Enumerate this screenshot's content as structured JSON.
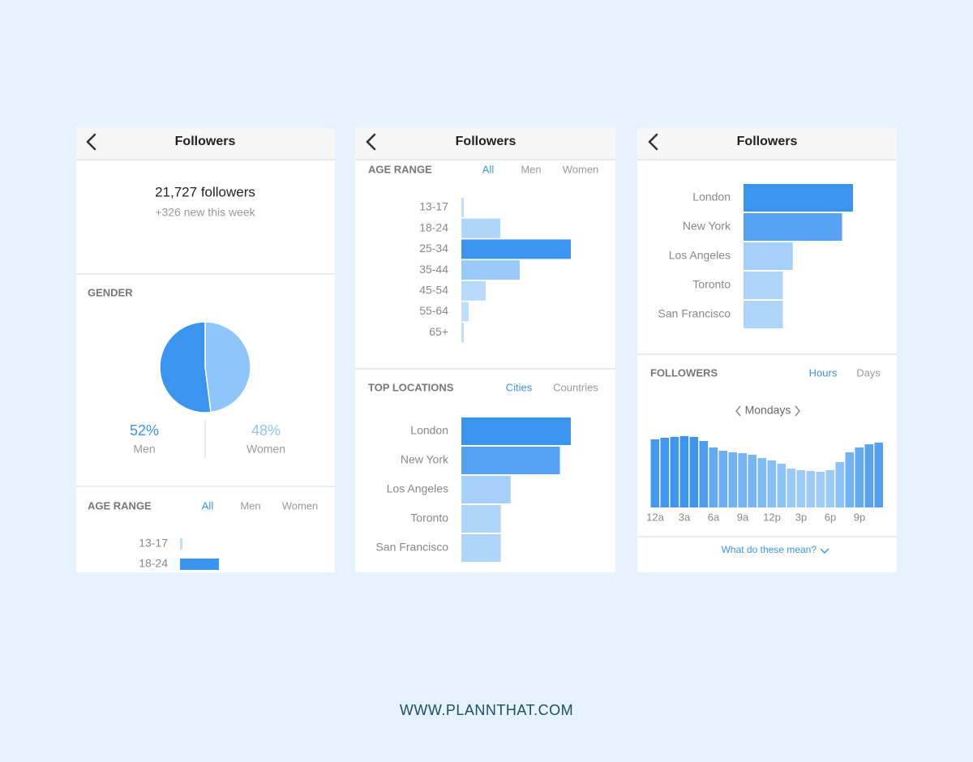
{
  "panels": [
    {
      "header": {
        "title": "Followers"
      },
      "summary": {
        "count": "21,727 followers",
        "change": "+326 new this week"
      },
      "gender": {
        "title": "GENDER",
        "chart_data": {
          "type": "pie",
          "categories": [
            "Men",
            "Women"
          ],
          "values": [
            52,
            48
          ],
          "value_labels": [
            "52%",
            "48%"
          ],
          "colors": [
            "#3b94ee",
            "#8ec5fa"
          ]
        }
      },
      "age_range": {
        "title": "AGE RANGE",
        "tabs": [
          "All",
          "Men",
          "Women"
        ],
        "active_tab": 0,
        "chart_data": {
          "type": "bar",
          "orientation": "horizontal",
          "categories": [
            "13-17",
            "18-24"
          ],
          "values": [
            1,
            16
          ],
          "color_range": [
            "#c0dffc",
            "#3b94ee"
          ]
        }
      }
    },
    {
      "header": {
        "title": "Followers"
      },
      "age_range": {
        "title": "AGE RANGE",
        "tabs": [
          "All",
          "Men",
          "Women"
        ],
        "active_tab": 0,
        "chart_data": {
          "type": "bar",
          "orientation": "horizontal",
          "categories": [
            "13-17",
            "18-24",
            "25-34",
            "35-44",
            "45-54",
            "55-64",
            "65+"
          ],
          "values": [
            1,
            16,
            45,
            24,
            10,
            3,
            1
          ],
          "color_range": [
            "#c0dffc",
            "#3b94ee"
          ]
        }
      },
      "top_locations": {
        "title": "TOP LOCATIONS",
        "tabs": [
          "Cities",
          "Countries"
        ],
        "active_tab": 0,
        "chart_data": {
          "type": "bar",
          "orientation": "horizontal",
          "categories": [
            "London",
            "New York",
            "Los Angeles",
            "Toronto",
            "San Francisco"
          ],
          "values": [
            100,
            90,
            45,
            36,
            36
          ],
          "color_range": [
            "#c0dffc",
            "#3b94ee"
          ]
        }
      }
    },
    {
      "header": {
        "title": "Followers"
      },
      "top_locations": {
        "chart_data": {
          "type": "bar",
          "orientation": "horizontal",
          "categories": [
            "London",
            "New York",
            "Los Angeles",
            "Toronto",
            "San Francisco"
          ],
          "values": [
            100,
            90,
            45,
            36,
            36
          ],
          "color_range": [
            "#c0dffc",
            "#3b94ee"
          ]
        }
      },
      "followers": {
        "title": "FOLLOWERS",
        "tabs": [
          "Hours",
          "Days"
        ],
        "active_tab": 0,
        "day": "Mondays",
        "chart_data": {
          "type": "bar",
          "values": [
            84,
            86,
            87,
            88,
            87,
            82,
            74,
            70,
            68,
            67,
            65,
            61,
            58,
            54,
            48,
            46,
            45,
            44,
            46,
            56,
            68,
            74,
            78,
            80
          ],
          "xticks": [
            {
              "value": 0,
              "label": "12a"
            },
            {
              "value": 3,
              "label": "3a"
            },
            {
              "value": 6,
              "label": "6a"
            },
            {
              "value": 9,
              "label": "9a"
            },
            {
              "value": 12,
              "label": "12p"
            },
            {
              "value": 15,
              "label": "3p"
            },
            {
              "value": 18,
              "label": "6p"
            },
            {
              "value": 21,
              "label": "9p"
            }
          ],
          "color_range": [
            "#c0dffc",
            "#3b94ee"
          ]
        },
        "link": "What do these mean?"
      }
    }
  ],
  "footer": "WWW.PLANNTHAT.COM"
}
